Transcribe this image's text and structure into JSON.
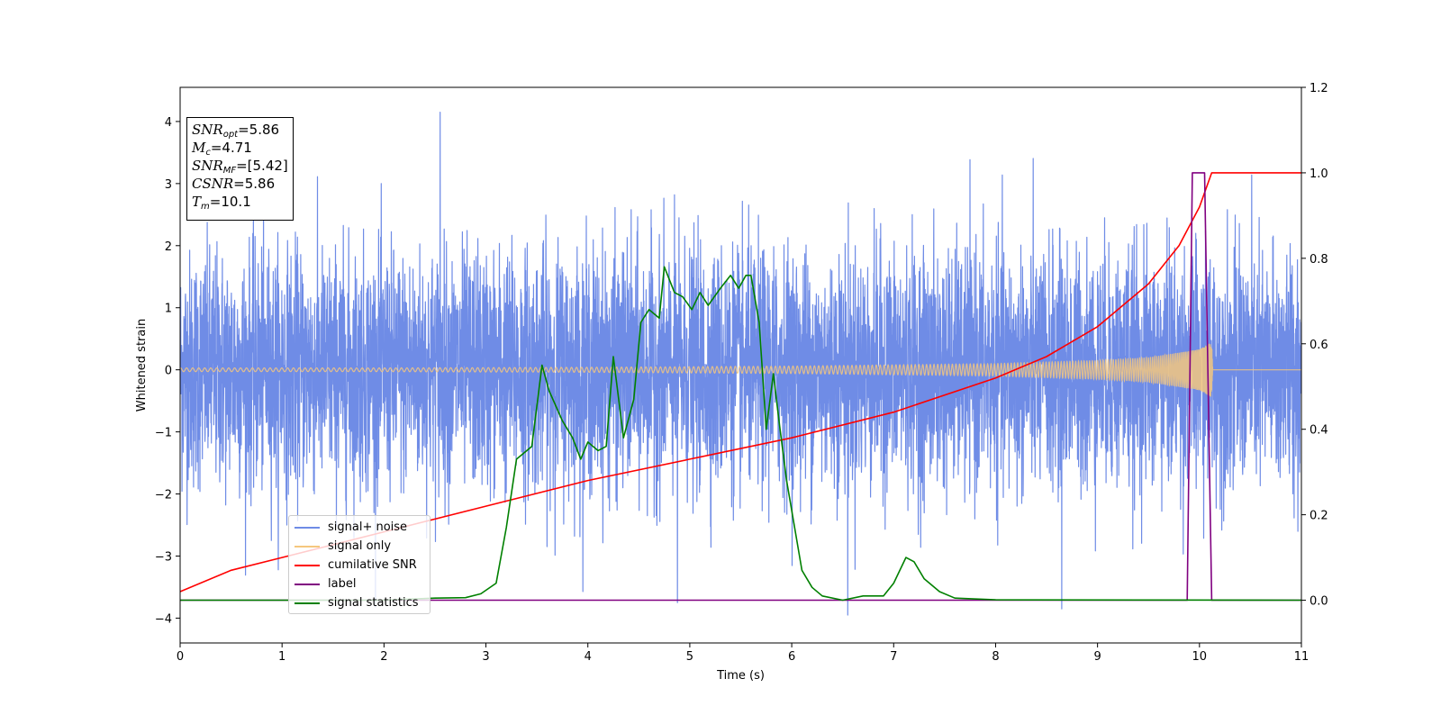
{
  "chart_data": {
    "type": "line",
    "xlabel": "Time (s)",
    "ylabel": "Whitened strain",
    "xlim": [
      0,
      11
    ],
    "ylim": [
      -4.4,
      4.55
    ],
    "y2lim": [
      -0.1,
      1.2
    ],
    "xticks": [
      "0",
      "1",
      "2",
      "3",
      "4",
      "5",
      "6",
      "7",
      "8",
      "9",
      "10",
      "11"
    ],
    "yticks": [
      "−4",
      "−3",
      "−2",
      "−1",
      "0",
      "1",
      "2",
      "3",
      "4"
    ],
    "y2ticks": [
      "0.0",
      "0.2",
      "0.4",
      "0.6",
      "0.8",
      "1.0",
      "1.2"
    ],
    "grid": false,
    "legend_position": "lower-left",
    "series": [
      {
        "name": "signal+ noise",
        "axis": "left",
        "color": "#6f8ce6",
        "description_stats": {
          "mean": 0,
          "std": 0.95,
          "min": -3.95,
          "max": 4.15
        },
        "x": [
          0,
          2.55,
          4.88,
          6.55,
          8.65,
          11
        ],
        "y": [
          0,
          4.15,
          -3.75,
          -3.95,
          -3.85,
          0
        ]
      },
      {
        "name": "signal only",
        "axis": "left",
        "color": "#f5c77e",
        "x": [
          0,
          2,
          4,
          6,
          7,
          8,
          9,
          9.5,
          10,
          10.12,
          10.13,
          11
        ],
        "envelope": [
          0.03,
          0.03,
          0.04,
          0.06,
          0.08,
          0.1,
          0.15,
          0.2,
          0.33,
          0.45,
          0.0,
          0.0
        ]
      },
      {
        "name": "cumilative SNR",
        "axis": "right",
        "color": "#ff0000",
        "x": [
          0,
          0.5,
          1,
          2,
          3,
          4,
          5,
          6,
          7,
          8,
          8.5,
          9,
          9.5,
          9.8,
          10,
          10.12,
          11
        ],
        "y": [
          0.02,
          0.07,
          0.1,
          0.16,
          0.22,
          0.28,
          0.33,
          0.38,
          0.44,
          0.52,
          0.57,
          0.64,
          0.74,
          0.83,
          0.92,
          1.0,
          1.0
        ]
      },
      {
        "name": "label",
        "axis": "right",
        "color": "#800080",
        "x": [
          0,
          9.88,
          9.93,
          10.05,
          10.12,
          11
        ],
        "y": [
          0,
          0,
          1,
          1,
          0,
          0
        ]
      },
      {
        "name": "signal statistics",
        "axis": "right",
        "color": "#008000",
        "x": [
          0,
          1,
          2,
          2.5,
          2.8,
          2.95,
          3.1,
          3.2,
          3.3,
          3.45,
          3.55,
          3.62,
          3.75,
          3.85,
          3.93,
          4.0,
          4.1,
          4.18,
          4.25,
          4.35,
          4.45,
          4.52,
          4.6,
          4.7,
          4.75,
          4.85,
          4.93,
          5.02,
          5.1,
          5.18,
          5.3,
          5.4,
          5.48,
          5.55,
          5.6,
          5.68,
          5.75,
          5.82,
          5.88,
          5.95,
          6.1,
          6.2,
          6.3,
          6.5,
          6.7,
          6.9,
          7.0,
          7.12,
          7.2,
          7.3,
          7.45,
          7.6,
          8.0,
          11
        ],
        "y": [
          0,
          0,
          0,
          0.005,
          0.006,
          0.015,
          0.04,
          0.17,
          0.33,
          0.36,
          0.55,
          0.49,
          0.42,
          0.38,
          0.33,
          0.37,
          0.35,
          0.36,
          0.57,
          0.38,
          0.47,
          0.65,
          0.68,
          0.66,
          0.78,
          0.72,
          0.71,
          0.68,
          0.72,
          0.69,
          0.73,
          0.76,
          0.73,
          0.76,
          0.76,
          0.65,
          0.4,
          0.53,
          0.41,
          0.28,
          0.07,
          0.03,
          0.01,
          0.0,
          0.01,
          0.01,
          0.04,
          0.1,
          0.09,
          0.05,
          0.02,
          0.005,
          0.001,
          0
        ]
      }
    ],
    "annotation": {
      "snr_opt": "=5.86",
      "mc": "=4.71",
      "snr_mf": "=[5.42]",
      "csnr": "=5.86",
      "tm": "=10.1"
    }
  }
}
